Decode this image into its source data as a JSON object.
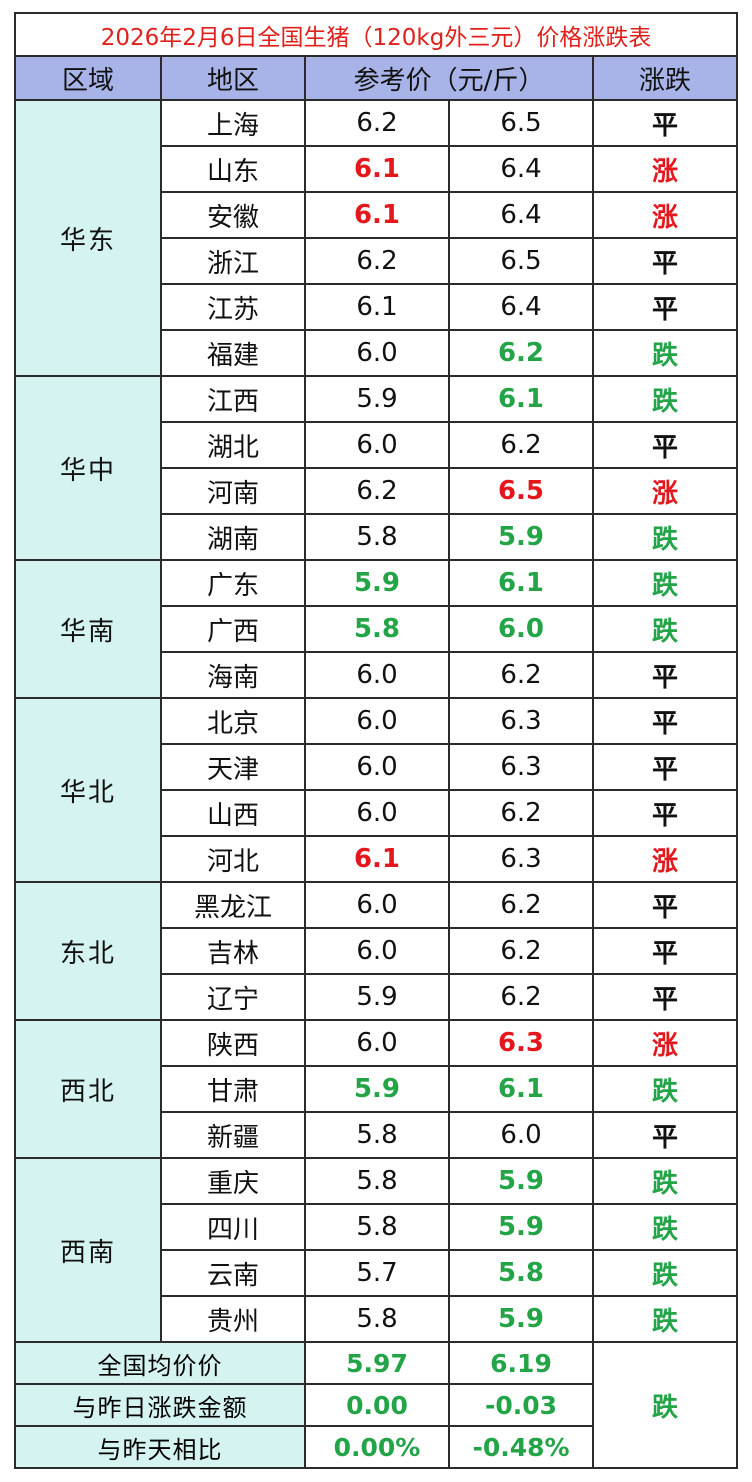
{
  "title": "2026年2月6日全国生猪（120kg外三元）价格涨跌表",
  "headers": {
    "region": "区域",
    "area": "地区",
    "price": "参考价（元/斤）",
    "trend": "涨跌"
  },
  "colors": {
    "up": "#e4181c",
    "down": "#22a447",
    "flat": "#111111",
    "header_bg": "#a8b4e8",
    "region_bg": "#d5f3f0"
  },
  "groups": [
    {
      "region": "华东",
      "rows": [
        {
          "area": "上海",
          "low": "6.2",
          "low_color": "flat",
          "high": "6.5",
          "high_color": "flat",
          "trend": "平",
          "trend_color": "flat"
        },
        {
          "area": "山东",
          "low": "6.1",
          "low_color": "up",
          "high": "6.4",
          "high_color": "flat",
          "trend": "涨",
          "trend_color": "up"
        },
        {
          "area": "安徽",
          "low": "6.1",
          "low_color": "up",
          "high": "6.4",
          "high_color": "flat",
          "trend": "涨",
          "trend_color": "up"
        },
        {
          "area": "浙江",
          "low": "6.2",
          "low_color": "flat",
          "high": "6.5",
          "high_color": "flat",
          "trend": "平",
          "trend_color": "flat"
        },
        {
          "area": "江苏",
          "low": "6.1",
          "low_color": "flat",
          "high": "6.4",
          "high_color": "flat",
          "trend": "平",
          "trend_color": "flat"
        },
        {
          "area": "福建",
          "low": "6.0",
          "low_color": "flat",
          "high": "6.2",
          "high_color": "down",
          "trend": "跌",
          "trend_color": "down"
        }
      ]
    },
    {
      "region": "华中",
      "rows": [
        {
          "area": "江西",
          "low": "5.9",
          "low_color": "flat",
          "high": "6.1",
          "high_color": "down",
          "trend": "跌",
          "trend_color": "down"
        },
        {
          "area": "湖北",
          "low": "6.0",
          "low_color": "flat",
          "high": "6.2",
          "high_color": "flat",
          "trend": "平",
          "trend_color": "flat"
        },
        {
          "area": "河南",
          "low": "6.2",
          "low_color": "flat",
          "high": "6.5",
          "high_color": "up",
          "trend": "涨",
          "trend_color": "up"
        },
        {
          "area": "湖南",
          "low": "5.8",
          "low_color": "flat",
          "high": "5.9",
          "high_color": "down",
          "trend": "跌",
          "trend_color": "down"
        }
      ]
    },
    {
      "region": "华南",
      "rows": [
        {
          "area": "广东",
          "low": "5.9",
          "low_color": "down",
          "high": "6.1",
          "high_color": "down",
          "trend": "跌",
          "trend_color": "down"
        },
        {
          "area": "广西",
          "low": "5.8",
          "low_color": "down",
          "high": "6.0",
          "high_color": "down",
          "trend": "跌",
          "trend_color": "down"
        },
        {
          "area": "海南",
          "low": "6.0",
          "low_color": "flat",
          "high": "6.2",
          "high_color": "flat",
          "trend": "平",
          "trend_color": "flat"
        }
      ]
    },
    {
      "region": "华北",
      "rows": [
        {
          "area": "北京",
          "low": "6.0",
          "low_color": "flat",
          "high": "6.3",
          "high_color": "flat",
          "trend": "平",
          "trend_color": "flat"
        },
        {
          "area": "天津",
          "low": "6.0",
          "low_color": "flat",
          "high": "6.3",
          "high_color": "flat",
          "trend": "平",
          "trend_color": "flat"
        },
        {
          "area": "山西",
          "low": "6.0",
          "low_color": "flat",
          "high": "6.2",
          "high_color": "flat",
          "trend": "平",
          "trend_color": "flat"
        },
        {
          "area": "河北",
          "low": "6.1",
          "low_color": "up",
          "high": "6.3",
          "high_color": "flat",
          "trend": "涨",
          "trend_color": "up"
        }
      ]
    },
    {
      "region": "东北",
      "rows": [
        {
          "area": "黑龙江",
          "low": "6.0",
          "low_color": "flat",
          "high": "6.2",
          "high_color": "flat",
          "trend": "平",
          "trend_color": "flat"
        },
        {
          "area": "吉林",
          "low": "6.0",
          "low_color": "flat",
          "high": "6.2",
          "high_color": "flat",
          "trend": "平",
          "trend_color": "flat"
        },
        {
          "area": "辽宁",
          "low": "5.9",
          "low_color": "flat",
          "high": "6.2",
          "high_color": "flat",
          "trend": "平",
          "trend_color": "flat"
        }
      ]
    },
    {
      "region": "西北",
      "rows": [
        {
          "area": "陕西",
          "low": "6.0",
          "low_color": "flat",
          "high": "6.3",
          "high_color": "up",
          "trend": "涨",
          "trend_color": "up"
        },
        {
          "area": "甘肃",
          "low": "5.9",
          "low_color": "down",
          "high": "6.1",
          "high_color": "down",
          "trend": "跌",
          "trend_color": "down"
        },
        {
          "area": "新疆",
          "low": "5.8",
          "low_color": "flat",
          "high": "6.0",
          "high_color": "flat",
          "trend": "平",
          "trend_color": "flat"
        }
      ]
    },
    {
      "region": "西南",
      "rows": [
        {
          "area": "重庆",
          "low": "5.8",
          "low_color": "flat",
          "high": "5.9",
          "high_color": "down",
          "trend": "跌",
          "trend_color": "down"
        },
        {
          "area": "四川",
          "low": "5.8",
          "low_color": "flat",
          "high": "5.9",
          "high_color": "down",
          "trend": "跌",
          "trend_color": "down"
        },
        {
          "area": "云南",
          "low": "5.7",
          "low_color": "flat",
          "high": "5.8",
          "high_color": "down",
          "trend": "跌",
          "trend_color": "down"
        },
        {
          "area": "贵州",
          "low": "5.8",
          "low_color": "flat",
          "high": "5.9",
          "high_color": "down",
          "trend": "跌",
          "trend_color": "down"
        }
      ]
    }
  ],
  "summary": {
    "avg_label": "全国均价价",
    "avg_low": "5.97",
    "avg_high": "6.19",
    "change_label": "与昨日涨跌金额",
    "change_low": "0.00",
    "change_high": "-0.03",
    "pct_label": "与昨天相比",
    "pct_low": "0.00%",
    "pct_high": "-0.48%",
    "trend": "跌"
  }
}
